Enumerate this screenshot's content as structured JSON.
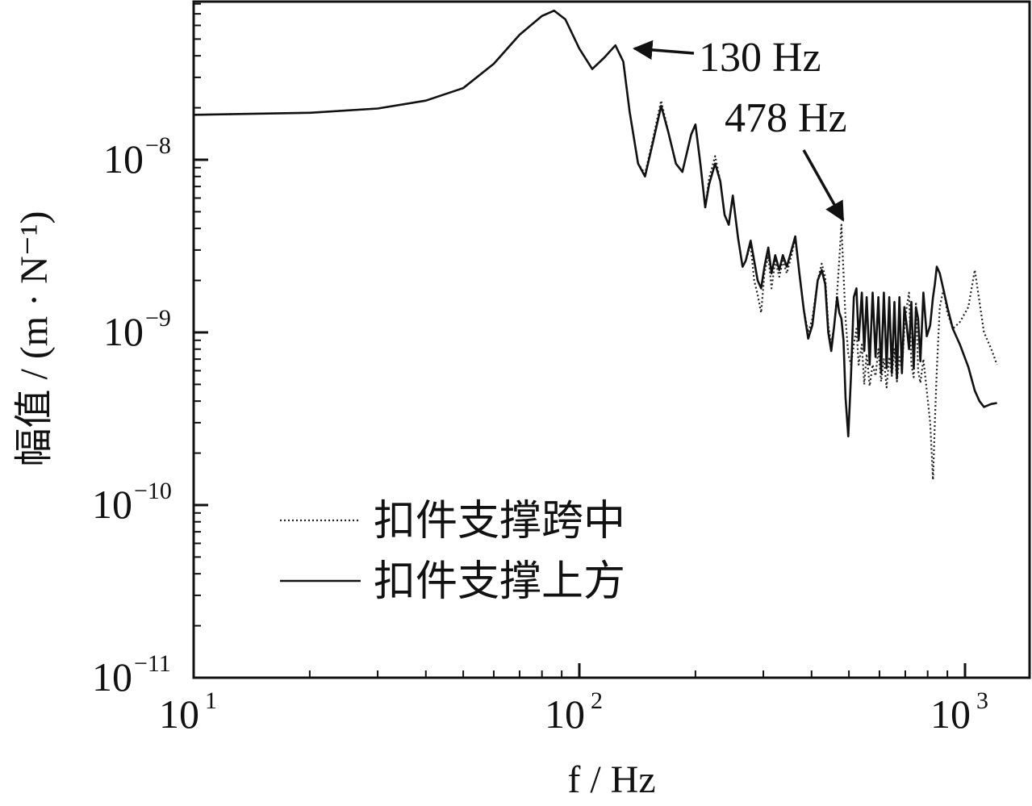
{
  "chart_data": {
    "type": "line",
    "xscale": "log",
    "yscale": "log",
    "xlim": [
      10,
      1300
    ],
    "ylim": [
      1e-11,
      1e-07
    ],
    "xlabel": "f / Hz",
    "ylabel": "幅值 / (m · N⁻¹)",
    "x_ticks": [
      {
        "value": 10,
        "base": "10",
        "exp": "1"
      },
      {
        "value": 100,
        "base": "10",
        "exp": "2"
      },
      {
        "value": 1000,
        "base": "10",
        "exp": "3"
      }
    ],
    "y_ticks": [
      {
        "value": 1e-08,
        "base": "10",
        "exp": "−8"
      },
      {
        "value": 1e-09,
        "base": "10",
        "exp": "−9"
      },
      {
        "value": 1e-10,
        "base": "10",
        "exp": "−10"
      },
      {
        "value": 1e-11,
        "base": "10",
        "exp": "−11"
      }
    ],
    "series": [
      {
        "name": "扣件支撑跨中",
        "style": "dotted",
        "color": "#222222",
        "points": [
          [
            10,
            1.82e-08
          ],
          [
            20,
            1.87e-08
          ],
          [
            30,
            1.98e-08
          ],
          [
            40,
            2.2e-08
          ],
          [
            50,
            2.6e-08
          ],
          [
            60,
            3.6e-08
          ],
          [
            70,
            5.3e-08
          ],
          [
            80,
            6.8e-08
          ],
          [
            86,
            7.3e-08
          ],
          [
            92,
            6.5e-08
          ],
          [
            100,
            4.4e-08
          ],
          [
            108,
            3.35e-08
          ],
          [
            116,
            3.9e-08
          ],
          [
            124,
            4.6e-08
          ],
          [
            130,
            3.7e-08
          ],
          [
            135,
            1.9e-08
          ],
          [
            142,
            9.5e-09
          ],
          [
            148,
            8.3e-09
          ],
          [
            155,
            1.3e-08
          ],
          [
            163,
            2.2e-08
          ],
          [
            170,
            1.45e-08
          ],
          [
            178,
            9.5e-09
          ],
          [
            185,
            8.5e-09
          ],
          [
            195,
            1.4e-08
          ],
          [
            200,
            1.6e-08
          ],
          [
            206,
            9.5e-09
          ],
          [
            212,
            5.3e-09
          ],
          [
            217,
            7.8e-09
          ],
          [
            225,
            1.05e-08
          ],
          [
            232,
            7.5e-09
          ],
          [
            238,
            4.8e-09
          ],
          [
            244,
            4.2e-09
          ],
          [
            250,
            6.2e-09
          ],
          [
            258,
            3.5e-09
          ],
          [
            265,
            2.4e-09
          ],
          [
            270,
            2.6e-09
          ],
          [
            278,
            3.2e-09
          ],
          [
            284,
            2e-09
          ],
          [
            290,
            1.65e-09
          ],
          [
            296,
            1.3e-09
          ],
          [
            302,
            2.2e-09
          ],
          [
            309,
            2.8e-09
          ],
          [
            315,
            1.8e-09
          ],
          [
            322,
            2.6e-09
          ],
          [
            330,
            2.1e-09
          ],
          [
            337,
            2.6e-09
          ],
          [
            345,
            2.2e-09
          ],
          [
            355,
            2.8e-09
          ],
          [
            363,
            3.5e-09
          ],
          [
            372,
            2.2e-09
          ],
          [
            382,
            1.35e-09
          ],
          [
            392,
            1e-09
          ],
          [
            402,
            1.2e-09
          ],
          [
            415,
            2e-09
          ],
          [
            425,
            2.5e-09
          ],
          [
            434,
            2.1e-09
          ],
          [
            442,
            1.1e-09
          ],
          [
            450,
            8.5e-10
          ],
          [
            458,
            1.1e-09
          ],
          [
            466,
            1.7e-09
          ],
          [
            472,
            2.6e-09
          ],
          [
            478,
            4.2e-09
          ],
          [
            484,
            2.2e-09
          ],
          [
            490,
            1.2e-09
          ],
          [
            498,
            7.5e-10
          ],
          [
            506,
            6.5e-10
          ],
          [
            515,
            8.5e-10
          ],
          [
            523,
            1.05e-09
          ],
          [
            530,
            6.5e-10
          ],
          [
            540,
            8.5e-10
          ],
          [
            548,
            5e-10
          ],
          [
            556,
            7.5e-10
          ],
          [
            566,
            4.9e-10
          ],
          [
            576,
            6.5e-10
          ],
          [
            586,
            5.6e-10
          ],
          [
            596,
            8e-10
          ],
          [
            606,
            5.2e-10
          ],
          [
            616,
            7e-10
          ],
          [
            626,
            4.8e-10
          ],
          [
            636,
            7.2e-10
          ],
          [
            646,
            5.6e-10
          ],
          [
            656,
            8e-10
          ],
          [
            666,
            5.2e-10
          ],
          [
            676,
            7.2e-10
          ],
          [
            686,
            6e-10
          ],
          [
            696,
            1.05e-09
          ],
          [
            706,
            1.4e-09
          ],
          [
            716,
            1.7e-09
          ],
          [
            726,
            6.5e-10
          ],
          [
            736,
            5.5e-10
          ],
          [
            746,
            1.5e-09
          ],
          [
            756,
            6e-10
          ],
          [
            766,
            5.1e-10
          ],
          [
            780,
            7e-10
          ],
          [
            796,
            4.6e-10
          ],
          [
            812,
            3e-10
          ],
          [
            826,
            1.4e-10
          ],
          [
            835,
            3e-10
          ],
          [
            845,
            6e-10
          ],
          [
            860,
            1.4e-09
          ],
          [
            880,
            1.8e-09
          ],
          [
            900,
            1.3e-09
          ],
          [
            930,
            1.05e-09
          ],
          [
            970,
            1.15e-09
          ],
          [
            1020,
            1.4e-09
          ],
          [
            1060,
            2.3e-09
          ],
          [
            1090,
            1.5e-09
          ],
          [
            1120,
            1e-09
          ],
          [
            1170,
            8e-10
          ],
          [
            1210,
            6.5e-10
          ]
        ]
      },
      {
        "name": "扣件支撑上方",
        "style": "solid",
        "color": "#111111",
        "points": [
          [
            10,
            1.82e-08
          ],
          [
            20,
            1.87e-08
          ],
          [
            30,
            1.98e-08
          ],
          [
            40,
            2.2e-08
          ],
          [
            50,
            2.6e-08
          ],
          [
            60,
            3.6e-08
          ],
          [
            70,
            5.3e-08
          ],
          [
            80,
            6.8e-08
          ],
          [
            86,
            7.3e-08
          ],
          [
            92,
            6.5e-08
          ],
          [
            100,
            4.4e-08
          ],
          [
            108,
            3.35e-08
          ],
          [
            116,
            3.9e-08
          ],
          [
            124,
            4.6e-08
          ],
          [
            130,
            3.7e-08
          ],
          [
            135,
            1.9e-08
          ],
          [
            142,
            9.5e-09
          ],
          [
            148,
            8e-09
          ],
          [
            155,
            1.25e-08
          ],
          [
            163,
            2.05e-08
          ],
          [
            170,
            1.45e-08
          ],
          [
            178,
            9.5e-09
          ],
          [
            185,
            8.5e-09
          ],
          [
            195,
            1.4e-08
          ],
          [
            200,
            1.6e-08
          ],
          [
            206,
            9.5e-09
          ],
          [
            212,
            5.3e-09
          ],
          [
            217,
            7.2e-09
          ],
          [
            225,
            9.5e-09
          ],
          [
            232,
            7.5e-09
          ],
          [
            238,
            4.8e-09
          ],
          [
            244,
            4.2e-09
          ],
          [
            250,
            6.2e-09
          ],
          [
            258,
            3.5e-09
          ],
          [
            265,
            2.4e-09
          ],
          [
            270,
            2.6e-09
          ],
          [
            278,
            3.4e-09
          ],
          [
            284,
            2.6e-09
          ],
          [
            290,
            2e-09
          ],
          [
            296,
            1.8e-09
          ],
          [
            302,
            2.4e-09
          ],
          [
            309,
            3.1e-09
          ],
          [
            315,
            2.2e-09
          ],
          [
            322,
            2.8e-09
          ],
          [
            330,
            2.3e-09
          ],
          [
            337,
            2.8e-09
          ],
          [
            345,
            2.4e-09
          ],
          [
            355,
            3e-09
          ],
          [
            363,
            3.6e-09
          ],
          [
            372,
            2.2e-09
          ],
          [
            382,
            1.35e-09
          ],
          [
            392,
            9.2e-10
          ],
          [
            402,
            1.1e-09
          ],
          [
            415,
            2e-09
          ],
          [
            425,
            2.3e-09
          ],
          [
            434,
            1.9e-09
          ],
          [
            442,
            1e-09
          ],
          [
            450,
            7.8e-10
          ],
          [
            458,
            1.1e-09
          ],
          [
            466,
            1.6e-09
          ],
          [
            472,
            1.3e-09
          ],
          [
            478,
            1.2e-09
          ],
          [
            484,
            9e-10
          ],
          [
            490,
            4.2e-10
          ],
          [
            498,
            2.5e-10
          ],
          [
            506,
            5.5e-10
          ],
          [
            515,
            1.6e-09
          ],
          [
            523,
            1.8e-09
          ],
          [
            530,
            9e-10
          ],
          [
            540,
            1.7e-09
          ],
          [
            548,
            7.8e-10
          ],
          [
            556,
            1.6e-09
          ],
          [
            566,
            6.5e-10
          ],
          [
            576,
            1.7e-09
          ],
          [
            586,
            7.2e-10
          ],
          [
            596,
            1.6e-09
          ],
          [
            606,
            5.8e-10
          ],
          [
            616,
            1.7e-09
          ],
          [
            626,
            6.2e-10
          ],
          [
            636,
            1.6e-09
          ],
          [
            646,
            5.8e-10
          ],
          [
            656,
            1.5e-09
          ],
          [
            666,
            5.4e-10
          ],
          [
            676,
            1.6e-09
          ],
          [
            686,
            5.8e-10
          ],
          [
            696,
            1.4e-09
          ],
          [
            706,
            1.1e-09
          ],
          [
            716,
            8e-10
          ],
          [
            726,
            1.5e-09
          ],
          [
            736,
            6.2e-10
          ],
          [
            746,
            1.4e-09
          ],
          [
            756,
            1.2e-09
          ],
          [
            766,
            6.8e-10
          ],
          [
            780,
            1.7e-09
          ],
          [
            796,
            9.5e-10
          ],
          [
            812,
            1.1e-09
          ],
          [
            826,
            1.6e-09
          ],
          [
            835,
            1.9e-09
          ],
          [
            845,
            2.4e-09
          ],
          [
            860,
            2.2e-09
          ],
          [
            880,
            1.75e-09
          ],
          [
            900,
            1.4e-09
          ],
          [
            930,
            1.05e-09
          ],
          [
            970,
            8.5e-10
          ],
          [
            1020,
            6.3e-10
          ],
          [
            1060,
            4.6e-10
          ],
          [
            1090,
            4e-10
          ],
          [
            1120,
            3.7e-10
          ],
          [
            1170,
            3.85e-10
          ],
          [
            1210,
            3.9e-10
          ]
        ]
      }
    ],
    "annotations": [
      {
        "text": "130 Hz",
        "x": 130,
        "y": 4.6e-08
      },
      {
        "text": "478 Hz",
        "x": 478,
        "y": 4.2e-09
      }
    ],
    "legend": {
      "position": "bottom-left",
      "entries": [
        "扣件支撑跨中",
        "扣件支撑上方"
      ]
    },
    "grid": false
  }
}
